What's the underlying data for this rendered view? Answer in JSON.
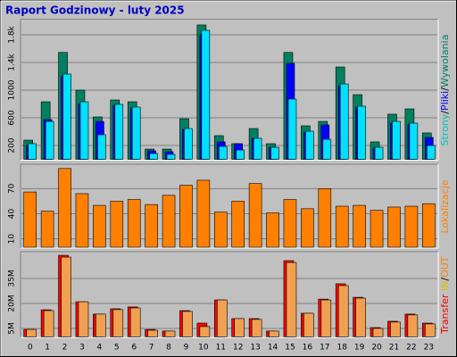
{
  "chart_data": [
    {
      "type": "bar",
      "title": "Raport Godzinowy -  luty 2025",
      "ylim": [
        0,
        2000
      ],
      "yticks": [
        200,
        600,
        1000,
        {
          "value": 1400,
          "label": "1.4k"
        },
        {
          "value": 1800,
          "label": "1.8k"
        }
      ],
      "legend_separator": "/",
      "grid": true,
      "series": [
        {
          "name": "Wywolania",
          "color": "#008060",
          "values": [
            277,
            832,
            1545,
            1000,
            613,
            858,
            832,
            148,
            148,
            587,
            1942,
            342,
            226,
            445,
            226,
            1545,
            484,
            548,
            1335,
            935,
            252,
            652,
            729,
            381
          ]
        },
        {
          "name": "Pliki",
          "color": "#0000ff",
          "values": [
            200,
            574,
            1200,
            800,
            548,
            780,
            740,
            123,
            110,
            430,
            1800,
            252,
            226,
            300,
            170,
            1387,
            390,
            497,
            1060,
            750,
            160,
            520,
            500,
            316
          ]
        },
        {
          "name": "Strony",
          "color": "#00e0ff",
          "values": [
            226,
            548,
            1232,
            832,
            355,
            794,
            755,
            84,
            71,
            445,
            1865,
            187,
            135,
            303,
            174,
            871,
            406,
            290,
            1090,
            768,
            174,
            548,
            523,
            200
          ]
        }
      ]
    },
    {
      "type": "bar",
      "ylim": [
        0,
        97
      ],
      "yticks": [
        10,
        40,
        70
      ],
      "grid": true,
      "series": [
        {
          "name": "Lokalizacje",
          "color": "#ff8000",
          "values": [
            66,
            43,
            94,
            64,
            50,
            55,
            57,
            51,
            62,
            74,
            80,
            42,
            55,
            76,
            41,
            57,
            46,
            70,
            49,
            50,
            44,
            48,
            49,
            52
          ]
        }
      ]
    },
    {
      "type": "bar",
      "ylabel": "Transfer",
      "ylim": [
        0,
        50
      ],
      "yticks": [
        {
          "value": 5,
          "label": "5M"
        },
        {
          "value": 20,
          "label": "20M"
        },
        {
          "value": 35,
          "label": "35M"
        }
      ],
      "legend_separator": "/",
      "grid": true,
      "categories": [
        "0",
        "1",
        "2",
        "3",
        "4",
        "5",
        "6",
        "7",
        "8",
        "9",
        "10",
        "11",
        "12",
        "13",
        "14",
        "15",
        "16",
        "17",
        "18",
        "19",
        "20",
        "21",
        "22",
        "23"
      ],
      "series": [
        {
          "name": "IN",
          "color": "#ff0000",
          "values": [
            4.4,
            16.2,
            48.9,
            21,
            13.6,
            16.8,
            17.9,
            4.4,
            3.4,
            15.7,
            8.2,
            22.1,
            10.9,
            10.9,
            3.4,
            45.7,
            14.1,
            22.6,
            31.8,
            23.7,
            5.5,
            9.3,
            13.6,
            8.2
          ]
        },
        {
          "name": "OUT",
          "color": "#f0a050",
          "values": [
            4.4,
            15.7,
            47.8,
            21,
            13.6,
            16.3,
            17.3,
            3.9,
            3.4,
            15.2,
            6.1,
            22.1,
            10.9,
            10.4,
            3.4,
            44.6,
            14.1,
            22.1,
            30.7,
            23.2,
            5.0,
            8.8,
            13.1,
            7.7
          ]
        }
      ]
    }
  ]
}
